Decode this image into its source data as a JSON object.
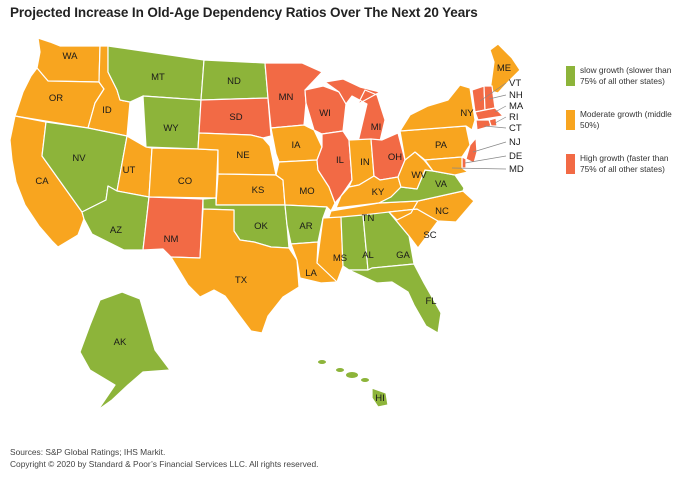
{
  "title": "Projected Increase In Old-Age Dependency Ratios Over The Next 20 Years",
  "colors": {
    "slow": "#8db43a",
    "moderate": "#f8a51f",
    "high": "#f26a45",
    "border": "#ffffff",
    "leader": "#888888"
  },
  "legend": [
    {
      "key": "slow",
      "label": "slow growth (slower than 75% of all other states)"
    },
    {
      "key": "moderate",
      "label": "Moderate growth (middle 50%)"
    },
    {
      "key": "high",
      "label": "High growth (faster than 75% of all other states)"
    }
  ],
  "states": [
    {
      "abbr": "WA",
      "growth": "moderate"
    },
    {
      "abbr": "OR",
      "growth": "moderate"
    },
    {
      "abbr": "CA",
      "growth": "moderate"
    },
    {
      "abbr": "ID",
      "growth": "moderate"
    },
    {
      "abbr": "NV",
      "growth": "slow"
    },
    {
      "abbr": "MT",
      "growth": "slow"
    },
    {
      "abbr": "WY",
      "growth": "slow"
    },
    {
      "abbr": "UT",
      "growth": "moderate"
    },
    {
      "abbr": "CO",
      "growth": "moderate"
    },
    {
      "abbr": "AZ",
      "growth": "slow"
    },
    {
      "abbr": "NM",
      "growth": "high"
    },
    {
      "abbr": "ND",
      "growth": "slow"
    },
    {
      "abbr": "SD",
      "growth": "high"
    },
    {
      "abbr": "NE",
      "growth": "moderate"
    },
    {
      "abbr": "KS",
      "growth": "moderate"
    },
    {
      "abbr": "OK",
      "growth": "slow"
    },
    {
      "abbr": "TX",
      "growth": "moderate"
    },
    {
      "abbr": "MN",
      "growth": "high"
    },
    {
      "abbr": "IA",
      "growth": "moderate"
    },
    {
      "abbr": "MO",
      "growth": "moderate"
    },
    {
      "abbr": "AR",
      "growth": "slow"
    },
    {
      "abbr": "LA",
      "growth": "moderate"
    },
    {
      "abbr": "WI",
      "growth": "high"
    },
    {
      "abbr": "IL",
      "growth": "high"
    },
    {
      "abbr": "MI",
      "growth": "high"
    },
    {
      "abbr": "IN",
      "growth": "moderate"
    },
    {
      "abbr": "OH",
      "growth": "high"
    },
    {
      "abbr": "KY",
      "growth": "moderate"
    },
    {
      "abbr": "TN",
      "growth": "moderate"
    },
    {
      "abbr": "MS",
      "growth": "moderate"
    },
    {
      "abbr": "AL",
      "growth": "slow"
    },
    {
      "abbr": "GA",
      "growth": "slow"
    },
    {
      "abbr": "FL",
      "growth": "slow"
    },
    {
      "abbr": "SC",
      "growth": "moderate"
    },
    {
      "abbr": "NC",
      "growth": "moderate"
    },
    {
      "abbr": "VA",
      "growth": "slow"
    },
    {
      "abbr": "WV",
      "growth": "moderate"
    },
    {
      "abbr": "PA",
      "growth": "moderate"
    },
    {
      "abbr": "NY",
      "growth": "moderate"
    },
    {
      "abbr": "ME",
      "growth": "moderate"
    },
    {
      "abbr": "VT",
      "growth": "high"
    },
    {
      "abbr": "NH",
      "growth": "high"
    },
    {
      "abbr": "MA",
      "growth": "high"
    },
    {
      "abbr": "RI",
      "growth": "high"
    },
    {
      "abbr": "CT",
      "growth": "high"
    },
    {
      "abbr": "NJ",
      "growth": "high"
    },
    {
      "abbr": "DE",
      "growth": "high"
    },
    {
      "abbr": "MD",
      "growth": "moderate"
    },
    {
      "abbr": "AK",
      "growth": "slow"
    },
    {
      "abbr": "HI",
      "growth": "slow"
    }
  ],
  "footer": {
    "sources": "Sources: S&P Global Ratings; IHS Markit.",
    "copyright": "Copyright © 2020 by Standard & Poor’s Financial Services LLC. All rights reserved."
  }
}
